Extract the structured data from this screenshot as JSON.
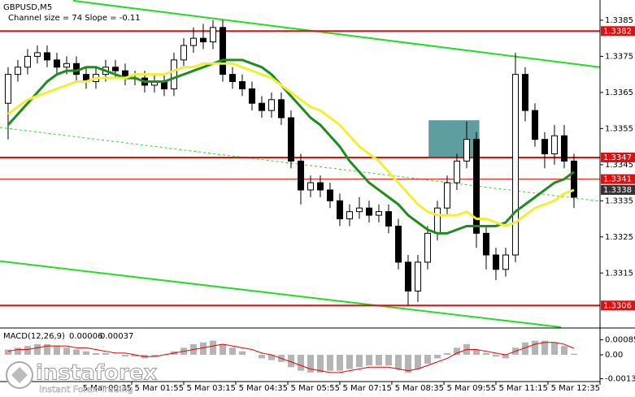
{
  "chart_data": {
    "type": "candlestick",
    "title": "GBPUSD,M5",
    "subtitle": "Channel size = 74 Slope = -0.11",
    "open": [
      1.3362,
      1.337,
      1.3372,
      1.3375,
      1.3376,
      1.3374,
      1.3372,
      1.3373,
      1.337,
      1.3368,
      1.337,
      1.3372,
      1.3371,
      1.3369,
      1.3369,
      1.3367,
      1.3368,
      1.3366,
      1.3374,
      1.3378,
      1.338,
      1.3379,
      1.3383,
      1.337,
      1.3368,
      1.3366,
      1.3362,
      1.336,
      1.3363,
      1.3358,
      1.3346,
      1.3338,
      1.334,
      1.3338,
      1.3335,
      1.333,
      1.3332,
      1.3333,
      1.3331,
      1.3332,
      1.3328,
      1.3318,
      1.331,
      1.3318,
      1.3326,
      1.3333,
      1.334,
      1.3346,
      1.3352,
      1.3326,
      1.332,
      1.3316,
      1.332,
      1.337,
      1.336,
      1.3352,
      1.3348,
      1.3353,
      1.3346
    ],
    "high": [
      1.3372,
      1.3374,
      1.3377,
      1.3378,
      1.3378,
      1.3376,
      1.3375,
      1.3375,
      1.3372,
      1.3372,
      1.3374,
      1.3374,
      1.3373,
      1.3371,
      1.3371,
      1.337,
      1.337,
      1.3376,
      1.338,
      1.3383,
      1.3384,
      1.3385,
      1.3385,
      1.3372,
      1.337,
      1.3368,
      1.3364,
      1.3365,
      1.3365,
      1.336,
      1.3348,
      1.3342,
      1.3342,
      1.334,
      1.3337,
      1.3334,
      1.3336,
      1.3335,
      1.3334,
      1.3334,
      1.333,
      1.332,
      1.332,
      1.3328,
      1.3335,
      1.3342,
      1.3348,
      1.3357,
      1.3354,
      1.3328,
      1.3322,
      1.3322,
      1.3376,
      1.3372,
      1.3362,
      1.3354,
      1.3356,
      1.3356,
      1.3348
    ],
    "low": [
      1.3352,
      1.3368,
      1.337,
      1.3373,
      1.3372,
      1.337,
      1.337,
      1.3368,
      1.3366,
      1.3366,
      1.3368,
      1.3369,
      1.3367,
      1.3367,
      1.3365,
      1.3365,
      1.3364,
      1.3364,
      1.3372,
      1.3376,
      1.3377,
      1.3377,
      1.3368,
      1.3366,
      1.3364,
      1.336,
      1.3358,
      1.3358,
      1.3356,
      1.3344,
      1.3334,
      1.3336,
      1.3336,
      1.3333,
      1.3328,
      1.3328,
      1.333,
      1.3329,
      1.3329,
      1.3326,
      1.3316,
      1.3306,
      1.3307,
      1.3316,
      1.3324,
      1.3331,
      1.3338,
      1.3344,
      1.3322,
      1.3316,
      1.3313,
      1.3314,
      1.3318,
      1.3357,
      1.335,
      1.3344,
      1.3345,
      1.3344,
      1.3333
    ],
    "close": [
      1.337,
      1.3372,
      1.3375,
      1.3376,
      1.3374,
      1.3372,
      1.3373,
      1.337,
      1.3368,
      1.337,
      1.3372,
      1.3371,
      1.3369,
      1.3369,
      1.3367,
      1.3368,
      1.3366,
      1.3374,
      1.3378,
      1.338,
      1.3379,
      1.3383,
      1.337,
      1.3368,
      1.3366,
      1.3362,
      1.336,
      1.3363,
      1.3358,
      1.3346,
      1.3338,
      1.334,
      1.3338,
      1.3335,
      1.333,
      1.3332,
      1.3333,
      1.3331,
      1.3332,
      1.3328,
      1.3318,
      1.331,
      1.3318,
      1.3326,
      1.3333,
      1.334,
      1.3346,
      1.3352,
      1.3326,
      1.332,
      1.3316,
      1.332,
      1.337,
      1.336,
      1.3352,
      1.3348,
      1.3353,
      1.3346,
      1.3336
    ],
    "up_color": "#ffffff",
    "down_color": "#000000",
    "moving_averages": [
      {
        "color": "#1e8c1e",
        "values": [
          1.3356,
          1.3359,
          1.3362,
          1.3365,
          1.3368,
          1.337,
          1.3371,
          1.3371,
          1.3372,
          1.3372,
          1.3371,
          1.337,
          1.3369,
          1.3369,
          1.3368,
          1.3368,
          1.3368,
          1.3369,
          1.337,
          1.3371,
          1.3372,
          1.3373,
          1.3374,
          1.3374,
          1.3374,
          1.3373,
          1.3372,
          1.337,
          1.3367,
          1.3364,
          1.3361,
          1.3358,
          1.3356,
          1.3353,
          1.335,
          1.3346,
          1.3343,
          1.334,
          1.3338,
          1.3336,
          1.3334,
          1.3331,
          1.3329,
          1.3327,
          1.3326,
          1.3326,
          1.3327,
          1.3328,
          1.3328,
          1.3328,
          1.3328,
          1.3329,
          1.3332,
          1.3334,
          1.3336,
          1.3338,
          1.334,
          1.3341,
          1.3343
        ]
      },
      {
        "color": "#f0f032",
        "values": [
          1.3359,
          1.3361,
          1.3363,
          1.3364,
          1.3365,
          1.3366,
          1.3367,
          1.3368,
          1.3368,
          1.3369,
          1.3369,
          1.3369,
          1.3369,
          1.337,
          1.337,
          1.337,
          1.337,
          1.3371,
          1.3372,
          1.3372,
          1.3373,
          1.3373,
          1.3373,
          1.3373,
          1.3372,
          1.3371,
          1.337,
          1.3369,
          1.3367,
          1.3365,
          1.3363,
          1.3361,
          1.336,
          1.3358,
          1.3356,
          1.3353,
          1.335,
          1.3348,
          1.3346,
          1.3343,
          1.334,
          1.3337,
          1.3334,
          1.3332,
          1.3331,
          1.3331,
          1.3331,
          1.3332,
          1.333,
          1.333,
          1.3329,
          1.3328,
          1.3329,
          1.3331,
          1.3333,
          1.3334,
          1.3335,
          1.3337,
          1.3338
        ]
      }
    ],
    "channel_lines": [
      {
        "x": [
          6.67,
          60.67
        ],
        "y": [
          1.33904,
          1.3372
        ],
        "color": "#22dd22",
        "dashed": false
      },
      {
        "x": [
          -0.83,
          56.67
        ],
        "y": [
          1.33183,
          1.33
        ],
        "color": "#22dd22",
        "dashed": false
      },
      {
        "x": [
          -0.83,
          60.67
        ],
        "y": [
          1.33553,
          1.33349
        ],
        "color": "#22dd22",
        "dashed": true
      }
    ],
    "levels": [
      {
        "value": 1.3382,
        "color": "#e01010"
      },
      {
        "value": 1.3347,
        "color": "#e01010"
      },
      {
        "value": 1.3341,
        "color": "#e01010"
      },
      {
        "value": 1.3306,
        "color": "#e01010"
      }
    ],
    "current_price": {
      "value": 1.3338,
      "color": "#333333"
    },
    "zone": {
      "x": [
        43.1,
        48.3
      ],
      "y": [
        1.33472,
        1.33573
      ],
      "color": "#5f9ea0"
    },
    "xlim": [
      -0.83,
      60.67
    ],
    "xticks": [
      {
        "value": 12.67,
        "label": "5 Mar 00:35"
      },
      {
        "value": 18,
        "label": "5 Mar 01:55"
      },
      {
        "value": 23.33,
        "label": "5 Mar 03:15"
      },
      {
        "value": 28.67,
        "label": "5 Mar 04:35"
      },
      {
        "value": 34,
        "label": "5 Mar 05:55"
      },
      {
        "value": 39.33,
        "label": "5 Mar 07:15"
      },
      {
        "value": 44.67,
        "label": "5 Mar 08:35"
      },
      {
        "value": 50,
        "label": "5 Mar 09:55"
      },
      {
        "value": 55.33,
        "label": "5 Mar 11:15"
      },
      {
        "value": 60.67,
        "label": "5 Mar 12:35"
      }
    ],
    "ylim": [
      1.33,
      1.33906
    ],
    "yticks": [
      1.3385,
      1.3375,
      1.3365,
      1.3355,
      1.3345,
      1.3335,
      1.3325,
      1.3315
    ],
    "macd": {
      "title": "MACD(12,26,9)",
      "histogram": [
        0.0003,
        0.0004,
        0.0005,
        0.0006,
        0.0006,
        0.0005,
        0.0004,
        0.0003,
        0.0002,
        0.0001,
        0.0001,
        0,
        -0.0001,
        -0.0001,
        -0.0002,
        -0.0001,
        0,
        0.0002,
        0.0004,
        0.0006,
        0.0007,
        0.0008,
        0.0006,
        0.0004,
        0.0002,
        0,
        -0.0002,
        -0.0003,
        -0.0004,
        -0.0007,
        -0.0009,
        -0.001,
        -0.001,
        -0.0009,
        -0.0009,
        -0.0008,
        -0.0007,
        -0.0006,
        -0.0006,
        -0.0006,
        -0.0008,
        -0.001,
        -0.0008,
        -0.0005,
        -0.0002,
        0.0001,
        0.0004,
        0.0006,
        0.0003,
        0.0001,
        -0.0001,
        -0.0002,
        0.0004,
        0.0007,
        0.0008,
        0.0008,
        0.0007,
        0.0005,
        6e-05
      ],
      "signal": [
        0.0002,
        0.0003,
        0.0003,
        0.0004,
        0.0005,
        0.0005,
        0.0005,
        0.0004,
        0.0004,
        0.0003,
        0.0002,
        0.0001,
        0.0001,
        0,
        -0.0001,
        -0.0001,
        0,
        0.0001,
        0.0002,
        0.0003,
        0.0004,
        0.0005,
        0.0006,
        0.0005,
        0.0004,
        0.0003,
        0.0001,
        0,
        -0.0002,
        -0.0004,
        -0.0006,
        -0.0008,
        -0.0009,
        -0.001,
        -0.001,
        -0.0009,
        -0.0008,
        -0.0007,
        -0.0007,
        -0.0007,
        -0.0008,
        -0.0009,
        -0.0008,
        -0.0006,
        -0.0004,
        -0.0002,
        0.0001,
        0.0003,
        0.0003,
        0.0002,
        0.0001,
        0,
        0.0002,
        0.0004,
        0.0006,
        0.0007,
        0.0007,
        0.0006,
        0.00037
      ],
      "histogram_color": "#b4b4b4",
      "signal_color": "#e00000",
      "ylim": [
        -0.00197,
        0.00147
      ],
      "yticks": [
        0.00085,
        {
          "value": 0,
          "label": "0.00"
        },
        -0.00135
      ]
    },
    "watermark": {
      "brand": "instaforex",
      "tagline": "Instant Forex Trading"
    }
  }
}
